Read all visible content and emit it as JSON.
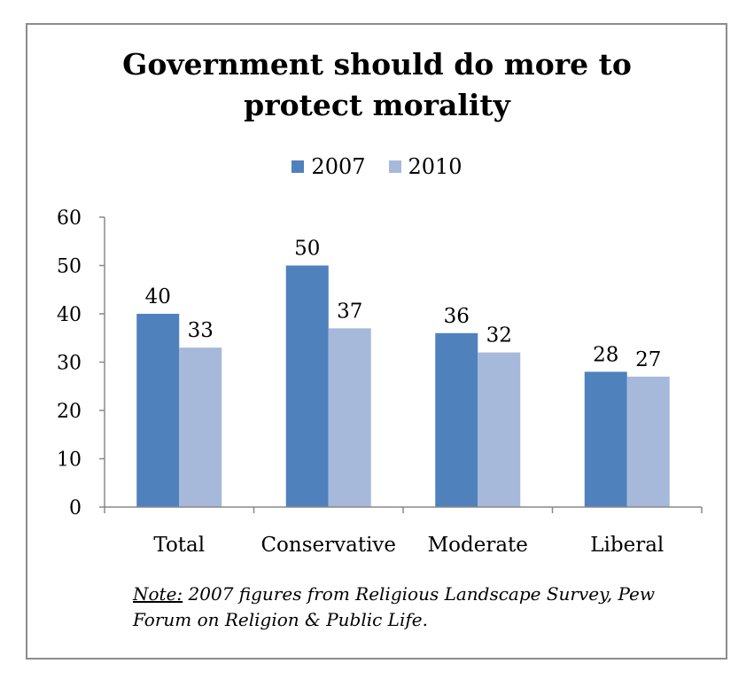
{
  "chart_data": {
    "type": "bar",
    "title_lines": [
      "Government should do more to",
      "protect morality"
    ],
    "categories": [
      "Total",
      "Conservative",
      "Moderate",
      "Liberal"
    ],
    "series": [
      {
        "name": "2007",
        "values": [
          40,
          50,
          36,
          28
        ],
        "color": "#4F81BD"
      },
      {
        "name": "2010",
        "values": [
          33,
          37,
          32,
          27
        ],
        "color": "#A6B9DA"
      }
    ],
    "ylim": [
      0,
      60
    ],
    "yticks": [
      0,
      10,
      20,
      30,
      40,
      50,
      60
    ],
    "xlabel": "",
    "ylabel": "",
    "legend_position": "top-center",
    "grid": false,
    "data_labels": true
  },
  "note": {
    "label": "Note:",
    "text": " 2007 figures from Religious Landscape Survey, Pew Forum on Religion & Public Life."
  }
}
